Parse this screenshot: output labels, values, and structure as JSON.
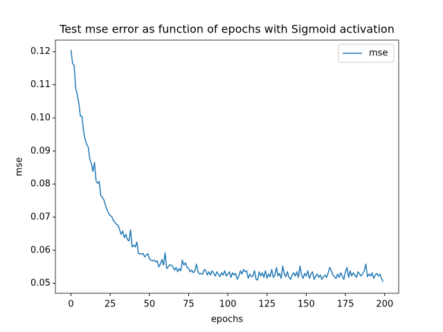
{
  "chart_data": {
    "type": "line",
    "title": "Test mse error as function of epochs with Sigmoid activation",
    "xlabel": "epochs",
    "ylabel": "mse",
    "x": [
      0,
      1,
      2,
      3,
      4,
      5,
      6,
      7,
      8,
      9,
      10,
      11,
      12,
      13,
      14,
      15,
      16,
      17,
      18,
      19,
      20,
      21,
      22,
      23,
      24,
      25,
      26,
      27,
      28,
      29,
      30,
      31,
      32,
      33,
      34,
      35,
      36,
      37,
      38,
      39,
      40,
      41,
      42,
      43,
      44,
      45,
      46,
      47,
      48,
      49,
      50,
      51,
      52,
      53,
      54,
      55,
      56,
      57,
      58,
      59,
      60,
      61,
      62,
      63,
      64,
      65,
      66,
      67,
      68,
      69,
      70,
      71,
      72,
      73,
      74,
      75,
      76,
      77,
      78,
      79,
      80,
      81,
      82,
      83,
      84,
      85,
      86,
      87,
      88,
      89,
      90,
      91,
      92,
      93,
      94,
      95,
      96,
      97,
      98,
      99,
      100,
      101,
      102,
      103,
      104,
      105,
      106,
      107,
      108,
      109,
      110,
      111,
      112,
      113,
      114,
      115,
      116,
      117,
      118,
      119,
      120,
      121,
      122,
      123,
      124,
      125,
      126,
      127,
      128,
      129,
      130,
      131,
      132,
      133,
      134,
      135,
      136,
      137,
      138,
      139,
      140,
      141,
      142,
      143,
      144,
      145,
      146,
      147,
      148,
      149,
      150,
      151,
      152,
      153,
      154,
      155,
      156,
      157,
      158,
      159,
      160,
      161,
      162,
      163,
      164,
      165,
      166,
      167,
      168,
      169,
      170,
      171,
      172,
      173,
      174,
      175,
      176,
      177,
      178,
      179,
      180,
      181,
      182,
      183,
      184,
      185,
      186,
      187,
      188,
      189,
      190,
      191,
      192,
      193,
      194,
      195,
      196,
      197,
      198,
      199
    ],
    "series": [
      {
        "name": "mse",
        "color": "#1f77b4",
        "values": [
          0.1205,
          0.1165,
          0.1158,
          0.109,
          0.107,
          0.1045,
          0.1005,
          0.1005,
          0.096,
          0.0935,
          0.092,
          0.0912,
          0.0875,
          0.0862,
          0.0838,
          0.0865,
          0.081,
          0.0802,
          0.0808,
          0.0765,
          0.076,
          0.0752,
          0.0735,
          0.0722,
          0.0712,
          0.0705,
          0.0702,
          0.069,
          0.0685,
          0.0678,
          0.0676,
          0.0662,
          0.0648,
          0.0658,
          0.0638,
          0.0648,
          0.0632,
          0.0628,
          0.0662,
          0.061,
          0.0615,
          0.061,
          0.0625,
          0.059,
          0.059,
          0.0588,
          0.059,
          0.058,
          0.0585,
          0.059,
          0.0575,
          0.057,
          0.0568,
          0.057,
          0.0565,
          0.0568,
          0.055,
          0.0558,
          0.0572,
          0.0555,
          0.0592,
          0.0545,
          0.055,
          0.0556,
          0.0555,
          0.055,
          0.054,
          0.0548,
          0.0535,
          0.0545,
          0.0538,
          0.057,
          0.0555,
          0.0562,
          0.0548,
          0.0545,
          0.0535,
          0.054,
          0.0532,
          0.0538,
          0.0558,
          0.0535,
          0.0528,
          0.053,
          0.0528,
          0.0542,
          0.0538,
          0.0525,
          0.0535,
          0.0525,
          0.0538,
          0.053,
          0.0522,
          0.0535,
          0.0528,
          0.052,
          0.0532,
          0.0525,
          0.0538,
          0.0522,
          0.0528,
          0.0535,
          0.0518,
          0.0532,
          0.0525,
          0.053,
          0.0512,
          0.0522,
          0.0538,
          0.0528,
          0.0542,
          0.0535,
          0.0538,
          0.0515,
          0.0528,
          0.052,
          0.0522,
          0.0538,
          0.0512,
          0.051,
          0.0535,
          0.0522,
          0.0532,
          0.0518,
          0.0538,
          0.0515,
          0.0528,
          0.052,
          0.0542,
          0.0518,
          0.0525,
          0.0548,
          0.0522,
          0.053,
          0.0515,
          0.0552,
          0.0528,
          0.052,
          0.0535,
          0.0518,
          0.0512,
          0.0525,
          0.0532,
          0.0522,
          0.0535,
          0.0518,
          0.0552,
          0.0525,
          0.0515,
          0.053,
          0.0522,
          0.0538,
          0.0515,
          0.0528,
          0.0535,
          0.0512,
          0.0522,
          0.0528,
          0.0518,
          0.0525,
          0.0512,
          0.052,
          0.0525,
          0.0518,
          0.0532,
          0.0548,
          0.0538,
          0.0525,
          0.052,
          0.0515,
          0.0528,
          0.0518,
          0.0532,
          0.0522,
          0.0512,
          0.0535,
          0.0548,
          0.0518,
          0.0538,
          0.0522,
          0.0532,
          0.0525,
          0.0518,
          0.0535,
          0.0528,
          0.0522,
          0.053,
          0.0538,
          0.0558,
          0.052,
          0.0528,
          0.0522,
          0.0532,
          0.0515,
          0.0525,
          0.053,
          0.0522,
          0.0528,
          0.0515,
          0.0505
        ]
      }
    ],
    "xlim": [
      -9.95,
      208.95
    ],
    "xticks": [
      0,
      25,
      50,
      75,
      100,
      125,
      150,
      175,
      200
    ],
    "ylim": [
      0.047,
      0.1235
    ],
    "yticks": [
      0.05,
      0.06,
      0.07,
      0.08,
      0.09,
      {
        "value": 0.1,
        "label": "0.10"
      },
      0.11,
      0.12
    ],
    "legend": "upper right"
  }
}
